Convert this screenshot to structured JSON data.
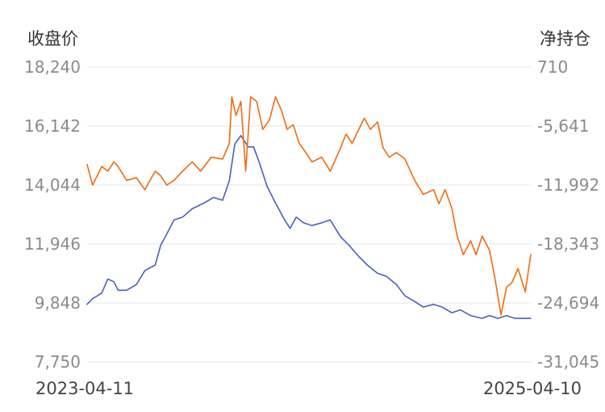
{
  "chart_data": {
    "type": "line",
    "title": "",
    "y_left": {
      "title": "收盘价",
      "ticks": [
        "18,240",
        "16,142",
        "14,044",
        "11,946",
        "9,848",
        "7,750"
      ],
      "range": [
        7750,
        18240
      ]
    },
    "y_right": {
      "title": "净持仓",
      "ticks": [
        "710",
        "-5,641",
        "-11,992",
        "-18,343",
        "-24,694",
        "-31,045"
      ],
      "range": [
        -31045,
        710
      ]
    },
    "x": {
      "start_label": "2023-04-11",
      "end_label": "2025-04-10",
      "range": [
        "2023-04-11",
        "2025-04-10"
      ]
    },
    "grid": true,
    "legend": "none",
    "series": [
      {
        "axis": "left",
        "color": "#4a5fbf",
        "points": [
          [
            "2023-04-11",
            9800
          ],
          [
            "2023-04-20",
            10000
          ],
          [
            "2023-05-05",
            10200
          ],
          [
            "2023-05-15",
            10700
          ],
          [
            "2023-05-25",
            10600
          ],
          [
            "2023-06-01",
            10300
          ],
          [
            "2023-06-15",
            10300
          ],
          [
            "2023-07-01",
            10500
          ],
          [
            "2023-07-15",
            11000
          ],
          [
            "2023-08-01",
            11200
          ],
          [
            "2023-08-10",
            11900
          ],
          [
            "2023-08-20",
            12300
          ],
          [
            "2023-09-01",
            12800
          ],
          [
            "2023-09-15",
            12900
          ],
          [
            "2023-10-01",
            13200
          ],
          [
            "2023-10-20",
            13400
          ],
          [
            "2023-11-05",
            13600
          ],
          [
            "2023-11-20",
            13500
          ],
          [
            "2023-12-01",
            14200
          ],
          [
            "2023-12-10",
            15500
          ],
          [
            "2023-12-20",
            15800
          ],
          [
            "2024-01-01",
            15400
          ],
          [
            "2024-01-10",
            15400
          ],
          [
            "2024-01-20",
            14800
          ],
          [
            "2024-02-01",
            14000
          ],
          [
            "2024-02-15",
            13400
          ],
          [
            "2024-03-01",
            12800
          ],
          [
            "2024-03-10",
            12500
          ],
          [
            "2024-03-20",
            12900
          ],
          [
            "2024-04-01",
            12700
          ],
          [
            "2024-04-15",
            12600
          ],
          [
            "2024-05-01",
            12700
          ],
          [
            "2024-05-15",
            12800
          ],
          [
            "2024-06-01",
            12200
          ],
          [
            "2024-06-15",
            11900
          ],
          [
            "2024-07-01",
            11500
          ],
          [
            "2024-07-15",
            11200
          ],
          [
            "2024-08-01",
            10900
          ],
          [
            "2024-08-15",
            10800
          ],
          [
            "2024-09-01",
            10500
          ],
          [
            "2024-09-15",
            10100
          ],
          [
            "2024-10-01",
            9900
          ],
          [
            "2024-10-15",
            9700
          ],
          [
            "2024-11-01",
            9800
          ],
          [
            "2024-11-15",
            9700
          ],
          [
            "2024-12-01",
            9500
          ],
          [
            "2024-12-15",
            9600
          ],
          [
            "2025-01-01",
            9400
          ],
          [
            "2025-01-20",
            9300
          ],
          [
            "2025-02-01",
            9400
          ],
          [
            "2025-02-15",
            9300
          ],
          [
            "2025-03-01",
            9400
          ],
          [
            "2025-03-15",
            9300
          ],
          [
            "2025-04-10",
            9300
          ]
        ]
      },
      {
        "axis": "right",
        "color": "#f26a10",
        "points": [
          [
            "2023-04-11",
            -9800
          ],
          [
            "2023-04-20",
            -12000
          ],
          [
            "2023-05-05",
            -10000
          ],
          [
            "2023-05-15",
            -10500
          ],
          [
            "2023-05-25",
            -9500
          ],
          [
            "2023-06-01",
            -10000
          ],
          [
            "2023-06-15",
            -11500
          ],
          [
            "2023-07-01",
            -11200
          ],
          [
            "2023-07-15",
            -12500
          ],
          [
            "2023-08-01",
            -10500
          ],
          [
            "2023-08-10",
            -11000
          ],
          [
            "2023-08-20",
            -12000
          ],
          [
            "2023-09-01",
            -11500
          ],
          [
            "2023-09-15",
            -10500
          ],
          [
            "2023-10-01",
            -9500
          ],
          [
            "2023-10-15",
            -10500
          ],
          [
            "2023-11-01",
            -9000
          ],
          [
            "2023-11-20",
            -9200
          ],
          [
            "2023-12-01",
            -7500
          ],
          [
            "2023-12-05",
            -2500
          ],
          [
            "2023-12-12",
            -4500
          ],
          [
            "2023-12-20",
            -3000
          ],
          [
            "2023-12-28",
            -10500
          ],
          [
            "2024-01-05",
            -2500
          ],
          [
            "2024-01-15",
            -3000
          ],
          [
            "2024-01-25",
            -6000
          ],
          [
            "2024-02-05",
            -5000
          ],
          [
            "2024-02-15",
            -2500
          ],
          [
            "2024-02-25",
            -4000
          ],
          [
            "2024-03-05",
            -6000
          ],
          [
            "2024-03-15",
            -5500
          ],
          [
            "2024-03-25",
            -7500
          ],
          [
            "2024-04-05",
            -8500
          ],
          [
            "2024-04-15",
            -9500
          ],
          [
            "2024-05-01",
            -9000
          ],
          [
            "2024-05-15",
            -10500
          ],
          [
            "2024-06-01",
            -8000
          ],
          [
            "2024-06-10",
            -6500
          ],
          [
            "2024-06-20",
            -7500
          ],
          [
            "2024-07-01",
            -6000
          ],
          [
            "2024-07-10",
            -4800
          ],
          [
            "2024-07-20",
            -6000
          ],
          [
            "2024-08-01",
            -5200
          ],
          [
            "2024-08-10",
            -8000
          ],
          [
            "2024-08-20",
            -9000
          ],
          [
            "2024-09-01",
            -8500
          ],
          [
            "2024-09-15",
            -9200
          ],
          [
            "2024-10-01",
            -11500
          ],
          [
            "2024-10-15",
            -13000
          ],
          [
            "2024-11-01",
            -12500
          ],
          [
            "2024-11-10",
            -14000
          ],
          [
            "2024-11-20",
            -12500
          ],
          [
            "2024-12-01",
            -14500
          ],
          [
            "2024-12-10",
            -17500
          ],
          [
            "2024-12-20",
            -19500
          ],
          [
            "2025-01-01",
            -18000
          ],
          [
            "2025-01-10",
            -19500
          ],
          [
            "2025-01-20",
            -17500
          ],
          [
            "2025-02-01",
            -19000
          ],
          [
            "2025-02-10",
            -22000
          ],
          [
            "2025-02-20",
            -26000
          ],
          [
            "2025-03-01",
            -23000
          ],
          [
            "2025-03-10",
            -22500
          ],
          [
            "2025-03-20",
            -21000
          ],
          [
            "2025-04-01",
            -23500
          ],
          [
            "2025-04-10",
            -19500
          ]
        ]
      }
    ]
  }
}
